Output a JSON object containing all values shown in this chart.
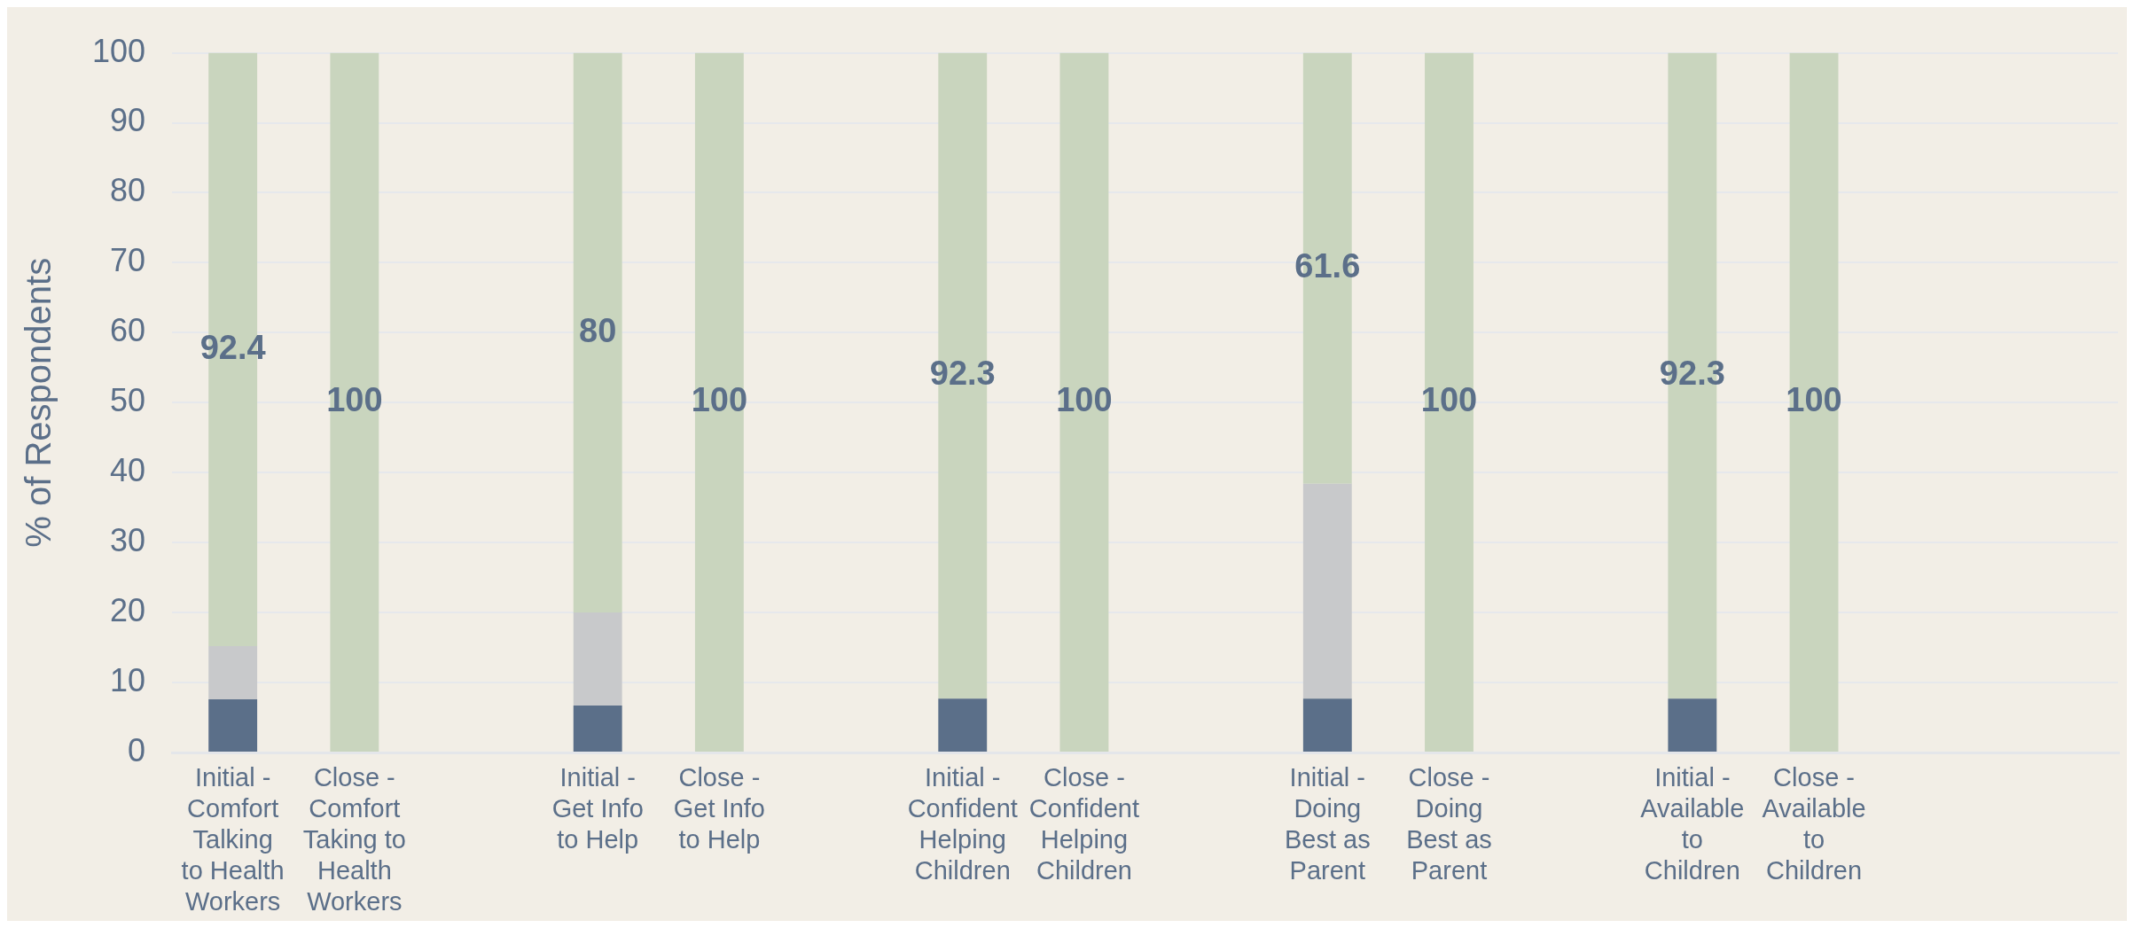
{
  "chart_data": {
    "type": "bar",
    "ylabel": "% of Respondents",
    "categories": [
      "Initial - Comfort Talking to Health Workers",
      "Close - Comfort Taking to Health Workers",
      null,
      "Initial - Get Info to Help",
      "Close - Get Info to Help",
      null,
      "Initial - Confident Helping Children",
      "Close - Confident Helping Children",
      null,
      "Initial - Doing Best as Parent",
      "Close - Doing Best as Parent",
      null,
      "Initial - Available to Children",
      "Close - Available to Children",
      null,
      null
    ],
    "stacked": true,
    "series": [
      {
        "color": "#5b6f89",
        "values": [
          7.6,
          0,
          null,
          6.7,
          0,
          null,
          7.7,
          0,
          null,
          7.7,
          0,
          null,
          7.7,
          0,
          null,
          null
        ]
      },
      {
        "color": "#c8c9cb",
        "values": [
          7.6,
          0,
          null,
          13.3,
          0,
          null,
          0,
          0,
          null,
          30.7,
          0,
          null,
          0,
          0,
          null,
          null
        ]
      },
      {
        "color": "#c9d5be",
        "values": [
          84.8,
          100,
          null,
          80,
          100,
          null,
          92.3,
          100,
          null,
          61.6,
          100,
          null,
          92.3,
          100,
          null,
          null
        ],
        "value_labels": [
          null,
          "100",
          null,
          "80",
          "100",
          null,
          "92.3",
          "100",
          null,
          "61.6",
          "100",
          null,
          "92.3",
          "100",
          null,
          null
        ]
      }
    ],
    "annotations": [
      "92.4"
    ],
    "ylim": [
      0,
      100
    ],
    "yticks": [
      0,
      10,
      20,
      30,
      40,
      50,
      60,
      70,
      80,
      90,
      100
    ],
    "grid": "y",
    "legend": false
  }
}
